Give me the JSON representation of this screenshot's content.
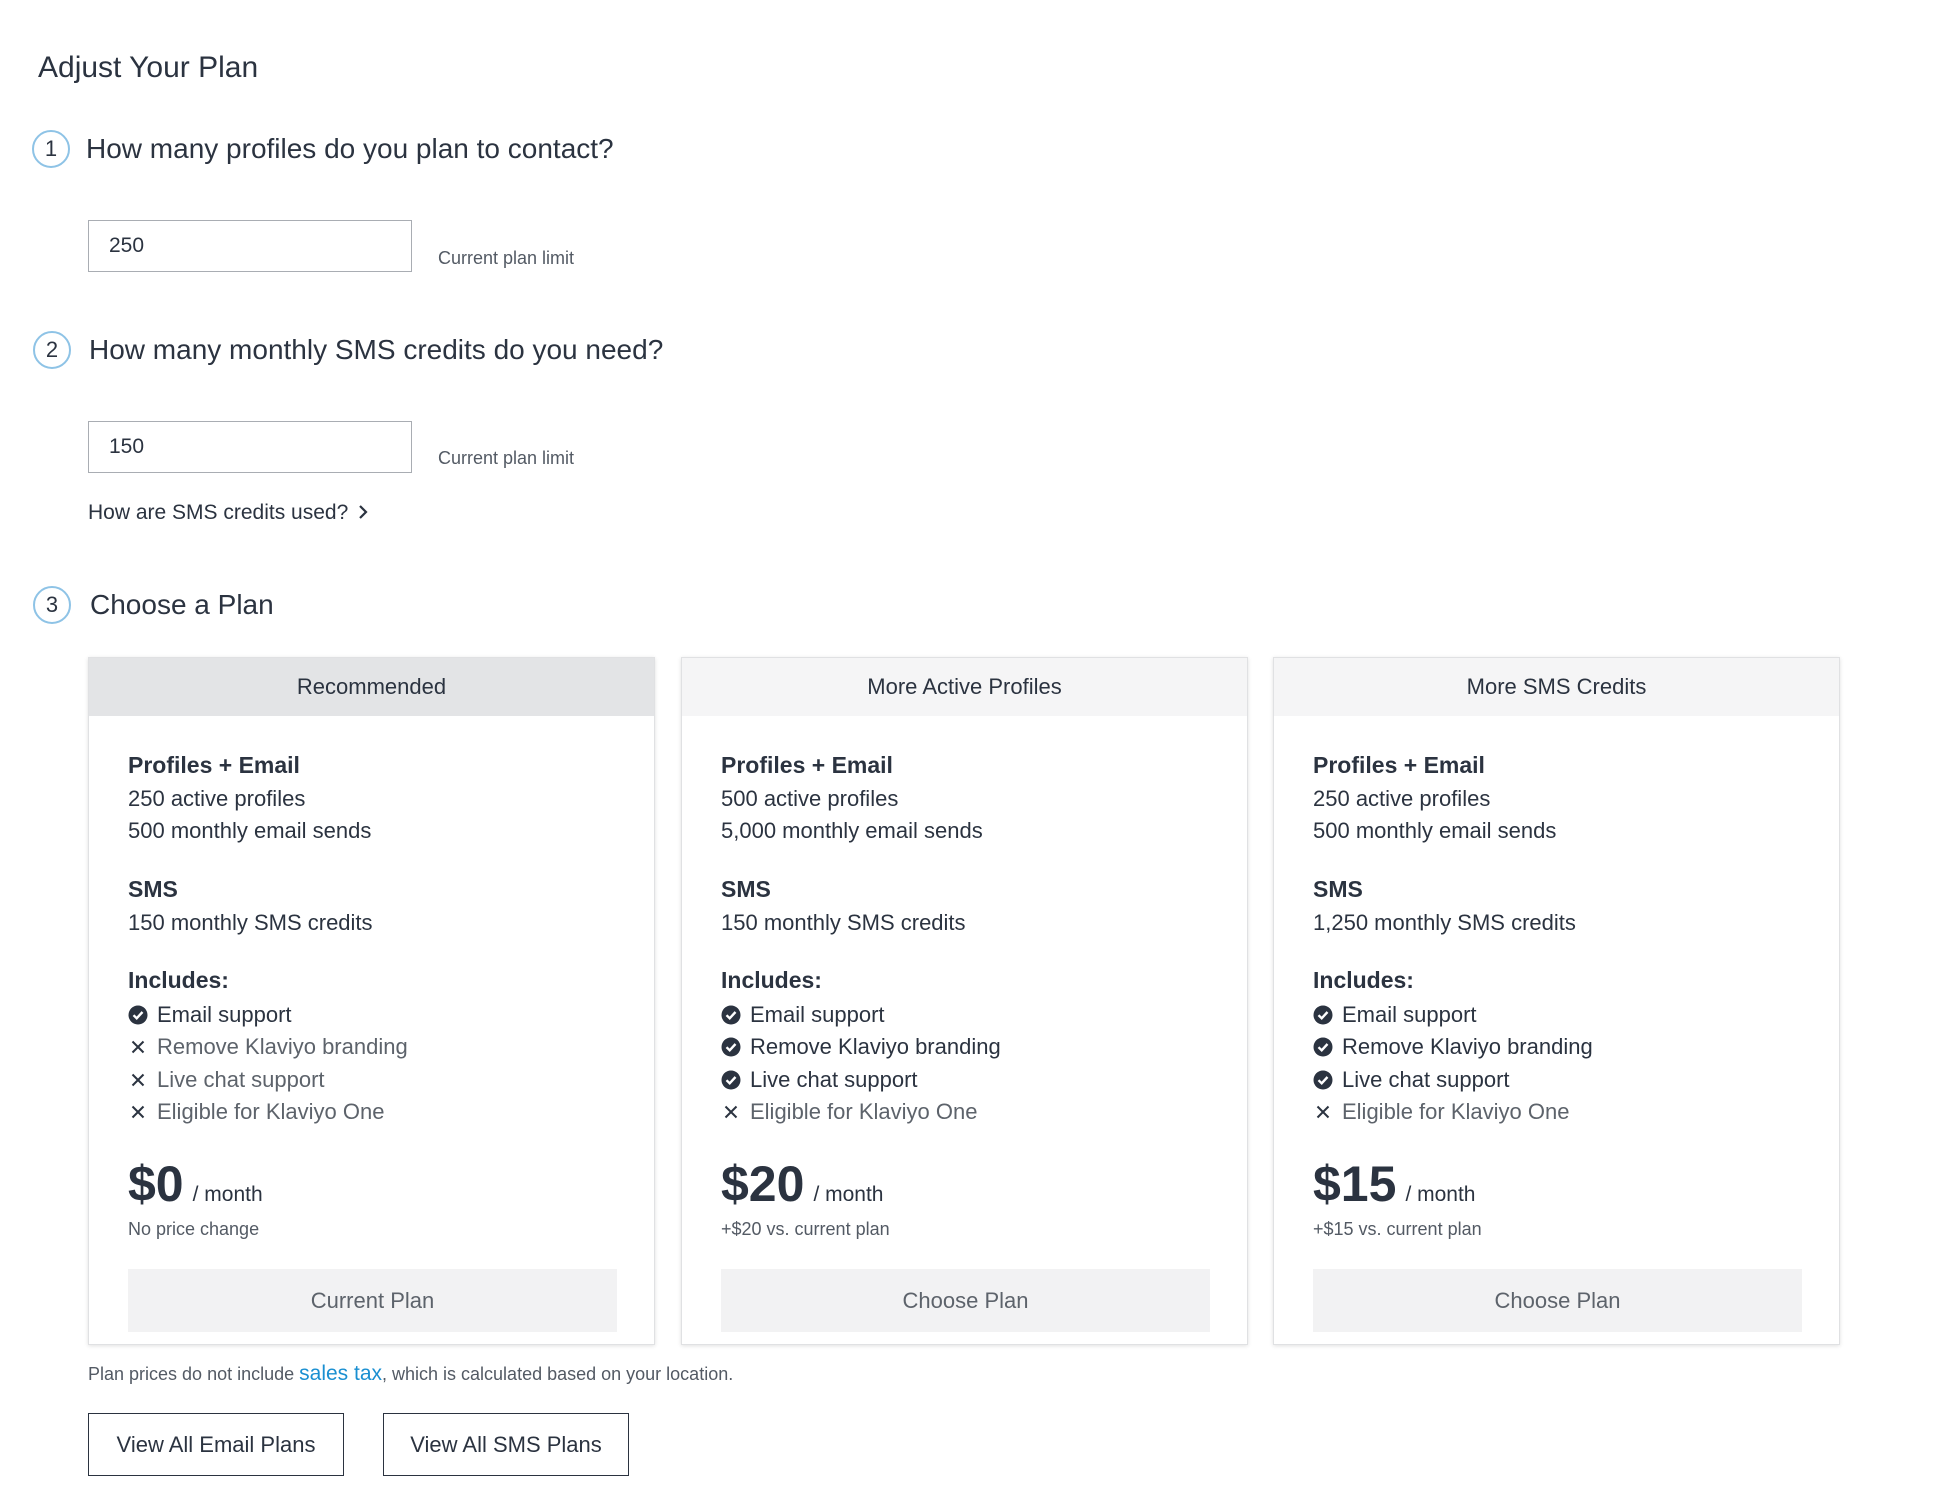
{
  "header": {
    "title": "Adjust Your Plan"
  },
  "steps": [
    {
      "number": "1",
      "question": "How many profiles do you plan to contact?",
      "input": "250",
      "hint": "Current plan limit"
    },
    {
      "number": "2",
      "question": "How many monthly SMS credits do you need?",
      "input": "150",
      "hint": "Current plan limit",
      "link": "How are SMS credits used?"
    },
    {
      "number": "3",
      "question": "Choose a Plan"
    }
  ],
  "plans": [
    {
      "header": "Recommended",
      "recommended": true,
      "sections": [
        {
          "title": "Profiles + Email",
          "lines": [
            "250 active profiles",
            "500 monthly email sends"
          ]
        },
        {
          "title": "SMS",
          "lines": [
            "150 monthly SMS credits"
          ]
        }
      ],
      "includes_title": "Includes:",
      "features": [
        {
          "text": "Email support",
          "included": true
        },
        {
          "text": "Remove Klaviyo branding",
          "included": false
        },
        {
          "text": "Live chat support",
          "included": false
        },
        {
          "text": "Eligible for Klaviyo One",
          "included": false
        }
      ],
      "price": "$0",
      "price_unit": "/ month",
      "price_note": "No price change",
      "button": "Current Plan"
    },
    {
      "header": "More Active Profiles",
      "recommended": false,
      "sections": [
        {
          "title": "Profiles + Email",
          "lines": [
            "500 active profiles",
            "5,000 monthly email sends"
          ]
        },
        {
          "title": "SMS",
          "lines": [
            "150 monthly SMS credits"
          ]
        }
      ],
      "includes_title": "Includes:",
      "features": [
        {
          "text": "Email support",
          "included": true
        },
        {
          "text": "Remove Klaviyo branding",
          "included": true
        },
        {
          "text": "Live chat support",
          "included": true
        },
        {
          "text": "Eligible for Klaviyo One",
          "included": false
        }
      ],
      "price": "$20",
      "price_unit": "/ month",
      "price_note": "+$20 vs. current plan",
      "button": "Choose Plan"
    },
    {
      "header": "More SMS Credits",
      "recommended": false,
      "sections": [
        {
          "title": "Profiles + Email",
          "lines": [
            "250 active profiles",
            "500 monthly email sends"
          ]
        },
        {
          "title": "SMS",
          "lines": [
            "1,250 monthly SMS credits"
          ]
        }
      ],
      "includes_title": "Includes:",
      "features": [
        {
          "text": "Email support",
          "included": true
        },
        {
          "text": "Remove Klaviyo branding",
          "included": true
        },
        {
          "text": "Live chat support",
          "included": true
        },
        {
          "text": "Eligible for Klaviyo One",
          "included": false
        }
      ],
      "price": "$15",
      "price_unit": "/ month",
      "price_note": "+$15 vs. current plan",
      "button": "Choose Plan"
    }
  ],
  "footer": {
    "note_before": "Plan prices do not include ",
    "note_link": "sales tax",
    "note_after": ", which is calculated based on your location.",
    "buttons": [
      "View All Email Plans",
      "View All SMS Plans"
    ]
  }
}
